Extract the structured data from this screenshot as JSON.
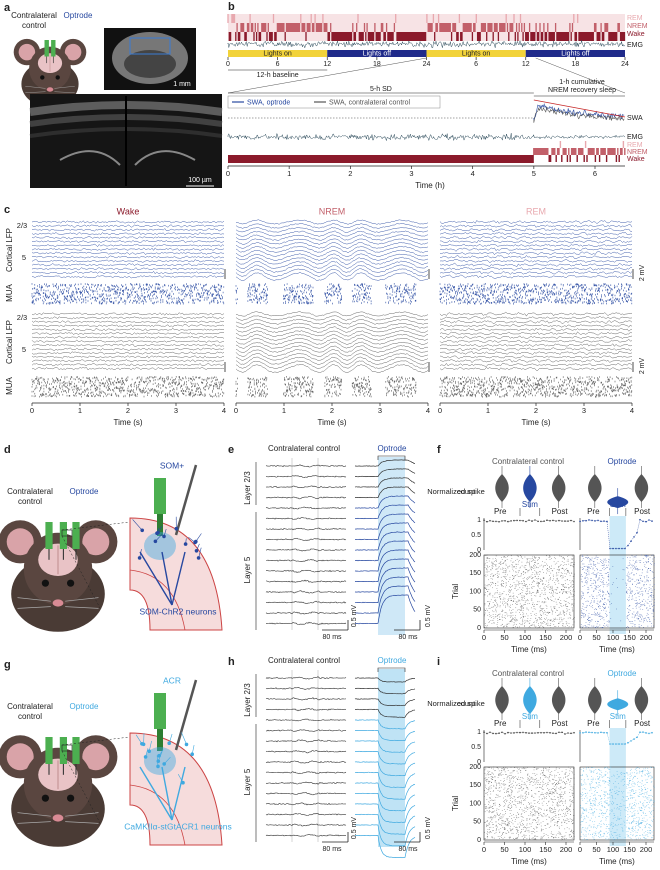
{
  "panel_a": {
    "label": "a",
    "control": [
      "Contralateral",
      "control"
    ],
    "optrode": "Optrode",
    "scale_top": "1 mm",
    "scale_bottom": "100 µm"
  },
  "panel_b": {
    "label": "b",
    "states": [
      "REM",
      "NREM",
      "Wake"
    ],
    "emg": "EMG",
    "lights": [
      "Lights on",
      "Lights off",
      "Lights on",
      "Lights off"
    ],
    "hour_ticks": [
      0,
      6,
      12,
      18,
      24,
      6,
      12,
      18,
      24
    ],
    "baseline": "12-h baseline",
    "sd": "5-h SD",
    "recovery": [
      "1-h cumulative",
      "NREM recovery sleep"
    ],
    "legend": [
      "SWA, optrode",
      "SWA, contralateral control"
    ],
    "swa": "SWA",
    "time_ticks": [
      0,
      1,
      2,
      3,
      4,
      5,
      6
    ],
    "xlabel": "Time (h)"
  },
  "panel_c": {
    "label": "c",
    "columns": [
      "Wake",
      "NREM",
      "REM"
    ],
    "layers": [
      "2/3",
      "5"
    ],
    "lfp": "Cortical LFP",
    "mua": "MUA",
    "scale": "2 mV",
    "xticks": [
      0,
      1,
      2,
      3,
      4
    ],
    "xlabel": "Time (s)"
  },
  "panel_d": {
    "label": "d",
    "construct": "SOM+",
    "control": [
      "Contralateral",
      "control"
    ],
    "optrode": "Optrode",
    "neurons": "SOM-ChR2 neurons"
  },
  "panel_e": {
    "label": "e",
    "control": "Contralateral control",
    "optrode": "Optrode",
    "layers": [
      "Layer 2/3",
      "Layer 5"
    ],
    "scale_v": "0.5 mV",
    "scale_t": "80 ms"
  },
  "panel_f": {
    "label": "f",
    "control": "Contralateral control",
    "optrode": "Optrode",
    "ylabel": [
      "Normalized spike",
      "count"
    ],
    "epochs": [
      "Pre",
      "Stim",
      "Post"
    ],
    "rate_ticks": [
      1,
      0.5,
      0
    ],
    "trial": "Trial",
    "trial_ticks": [
      200,
      150,
      100,
      50,
      0
    ],
    "xticks": [
      0,
      50,
      100,
      150,
      200
    ],
    "xlabel": "Time (ms)"
  },
  "panel_g": {
    "label": "g",
    "construct": "ACR",
    "control": [
      "Contralateral",
      "control"
    ],
    "optrode": "Optrode",
    "neurons": "CaMKIIα-stGtACR1 neurons"
  },
  "panel_h": {
    "label": "h",
    "control": "Contralateral control",
    "optrode": "Optrode",
    "layers": [
      "Layer 2/3",
      "Layer 5"
    ],
    "scale_v": "0.5 mV",
    "scale_t": "80 ms"
  },
  "panel_i": {
    "label": "i",
    "control": "Contralateral control",
    "optrode": "Optrode",
    "ylabel": [
      "Normalized spike",
      "count"
    ],
    "epochs": [
      "Pre",
      "Stim",
      "Post"
    ],
    "rate_ticks": [
      1,
      0.5,
      0
    ],
    "trial": "Trial",
    "trial_ticks": [
      200,
      150,
      100,
      50,
      0
    ],
    "xticks": [
      0,
      50,
      100,
      150,
      200
    ],
    "xlabel": "Time (ms)"
  }
}
